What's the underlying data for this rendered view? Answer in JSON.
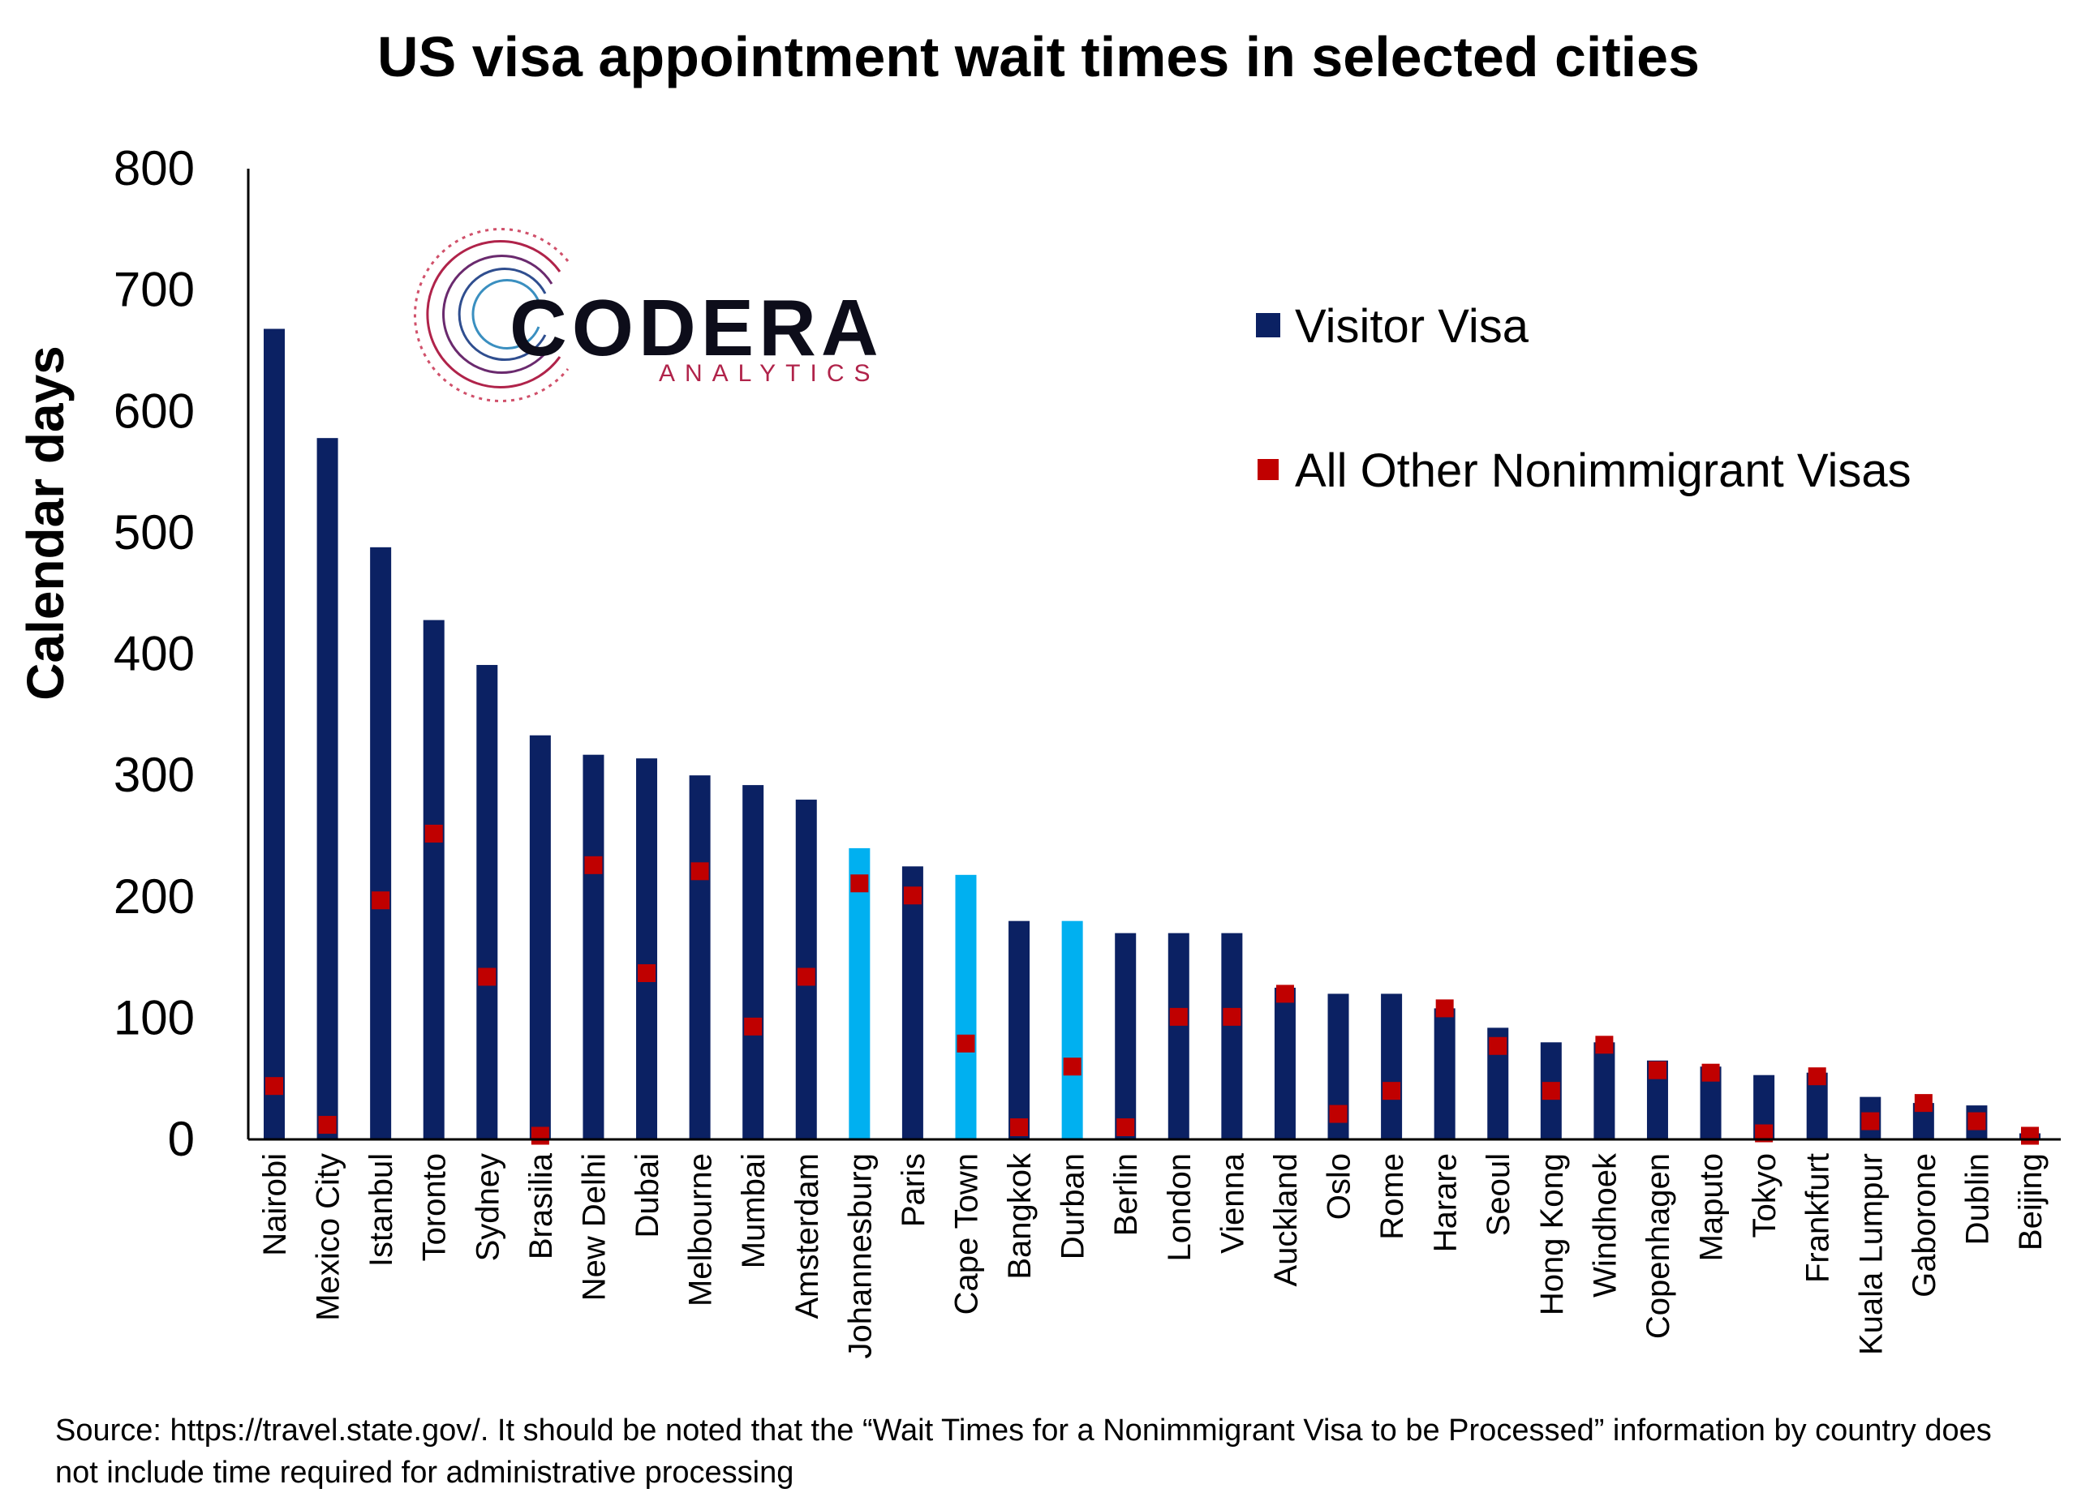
{
  "chart_data": {
    "type": "bar",
    "title": "US visa appointment wait times in selected cities",
    "ylabel": "Calendar days",
    "xlabel": "",
    "ylim": [
      0,
      800
    ],
    "yticks": [
      0,
      100,
      200,
      300,
      400,
      500,
      600,
      700,
      800
    ],
    "grid": false,
    "legend_position": "top-right",
    "categories": [
      "Nairobi",
      "Mexico City",
      "Istanbul",
      "Toronto",
      "Sydney",
      "Brasilia",
      "New Delhi",
      "Dubai",
      "Melbourne",
      "Mumbai",
      "Amsterdam",
      "Johannesburg",
      "Paris",
      "Cape Town",
      "Bangkok",
      "Durban",
      "Berlin",
      "London",
      "Vienna",
      "Auckland",
      "Oslo",
      "Rome",
      "Harare",
      "Seoul",
      "Hong Kong",
      "Windhoek",
      "Copenhagen",
      "Maputo",
      "Tokyo",
      "Frankfurt",
      "Kuala Lumpur",
      "Gaborone",
      "Dublin",
      "Beijing"
    ],
    "series": [
      {
        "name": "Visitor Visa",
        "style": "bar",
        "color": "#0b2163",
        "highlight_color": "#00b0f0",
        "highlight_categories": [
          "Johannesburg",
          "Cape Town",
          "Durban"
        ],
        "values": [
          668,
          578,
          488,
          428,
          391,
          333,
          317,
          314,
          300,
          292,
          280,
          240,
          225,
          218,
          180,
          180,
          170,
          170,
          170,
          125,
          120,
          120,
          108,
          92,
          80,
          80,
          65,
          60,
          53,
          55,
          35,
          30,
          28,
          5
        ]
      },
      {
        "name": "All Other Nonimmigrant Visas",
        "style": "marker",
        "color": "#c00000",
        "values": [
          44,
          12,
          197,
          252,
          134,
          3,
          226,
          137,
          221,
          93,
          134,
          211,
          201,
          79,
          10,
          60,
          10,
          101,
          101,
          120,
          21,
          40,
          108,
          77,
          40,
          78,
          57,
          55,
          5,
          52,
          15,
          30,
          15,
          3
        ]
      }
    ]
  },
  "logo": {
    "word": "CODERA",
    "sub": "ANALYTICS"
  },
  "source_note": "Source: https://travel.state.gov/. It should be noted that the “Wait Times for a Nonimmigrant Visa to be Processed” information by country does not include time required for administrative processing"
}
